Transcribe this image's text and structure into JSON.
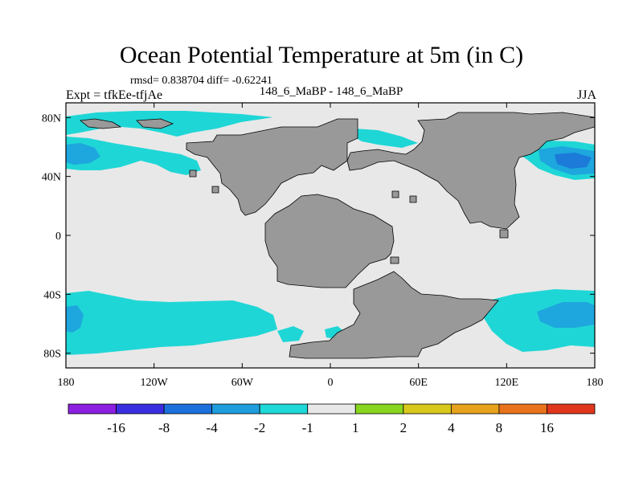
{
  "title": "Ocean Potential Temperature at 5m (in C)",
  "stats": "rmsd= 0.838704 diff= -0.62241",
  "experiment": "Expt = tfkEe-tfjAe",
  "comparison": "148_6_MaBP - 148_6_MaBP",
  "season": "JJA",
  "map": {
    "lon_range": [
      -180,
      180
    ],
    "lat_range": [
      -90,
      90
    ],
    "lon_ticks": [
      {
        "value": -180,
        "label": "180"
      },
      {
        "value": -120,
        "label": "120W"
      },
      {
        "value": -60,
        "label": "60W"
      },
      {
        "value": 0,
        "label": "0"
      },
      {
        "value": 60,
        "label": "60E"
      },
      {
        "value": 120,
        "label": "120E"
      },
      {
        "value": 180,
        "label": "180"
      }
    ],
    "lat_ticks": [
      {
        "value": 80,
        "label": "80N"
      },
      {
        "value": 40,
        "label": "40N"
      },
      {
        "value": 0,
        "label": "0"
      },
      {
        "value": -40,
        "label": "40S"
      },
      {
        "value": -80,
        "label": "80S"
      }
    ],
    "colors": {
      "ocean_neutral": "#e8e8e8",
      "land": "#999999",
      "cyan": "#1fd6d6",
      "mid_blue": "#1ea6de",
      "deep_blue": "#1c7ad8"
    }
  },
  "colorbar": {
    "colors": [
      "#8c1fe0",
      "#3a2ee0",
      "#1c70dc",
      "#1f9ddd",
      "#1fd8d8",
      "#e8e8e8",
      "#88d61f",
      "#d8c81c",
      "#e6a21c",
      "#e8731c",
      "#e0361c"
    ],
    "labels": [
      "-16",
      "-8",
      "-4",
      "-2",
      "-1",
      "1",
      "2",
      "4",
      "8",
      "16"
    ]
  }
}
